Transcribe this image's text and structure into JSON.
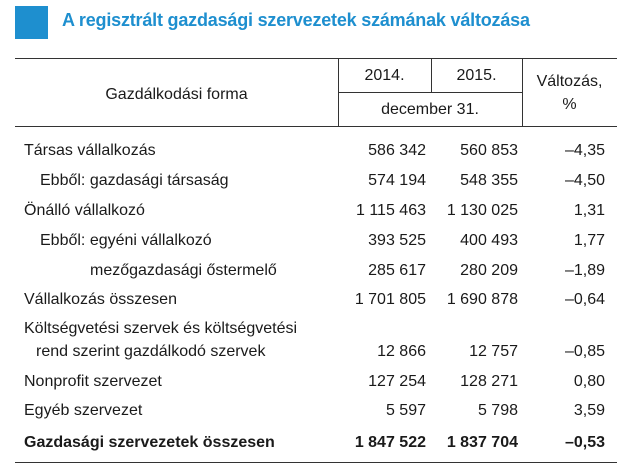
{
  "title": "A regisztrált gazdasági szervezetek számának változása",
  "header": {
    "form_label": "Gazdálkodási forma",
    "year1": "2014.",
    "year2": "2015.",
    "date_label": "december 31.",
    "change_line1": "Változás,",
    "change_line2": "%"
  },
  "rows": [
    {
      "label": "Társas vállalkozás",
      "v2014": "586 342",
      "v2015": "560 853",
      "change": "–4,35"
    },
    {
      "label": "Ebből: gazdasági társaság",
      "v2014": "574 194",
      "v2015": "548 355",
      "change": "–4,50"
    },
    {
      "label": "Önálló vállalkozó",
      "v2014": "1 115 463",
      "v2015": "1 130 025",
      "change": "1,31"
    },
    {
      "label": "Ebből: egyéni vállalkozó",
      "v2014": "393 525",
      "v2015": "400 493",
      "change": "1,77"
    },
    {
      "label": "mezőgazdasági őstermelő",
      "v2014": "285 617",
      "v2015": "280 209",
      "change": "–1,89"
    },
    {
      "label": "Vállalkozás összesen",
      "v2014": "1 701 805",
      "v2015": "1 690 878",
      "change": "–0,64"
    },
    {
      "label": "Költségvetési szervek és költségvetési",
      "label2": "rend szerint gazdálkodó szervek",
      "v2014": "12 866",
      "v2015": "12 757",
      "change": "–0,85"
    },
    {
      "label": "Nonprofit szervezet",
      "v2014": "127 254",
      "v2015": "128 271",
      "change": "0,80"
    },
    {
      "label": "Egyéb szervezet",
      "v2014": "5 597",
      "v2015": "5 798",
      "change": "3,59"
    },
    {
      "label": "Gazdasági szervezetek összesen",
      "v2014": "1 847 522",
      "v2015": "1 837 704",
      "change": "–0,53"
    }
  ]
}
